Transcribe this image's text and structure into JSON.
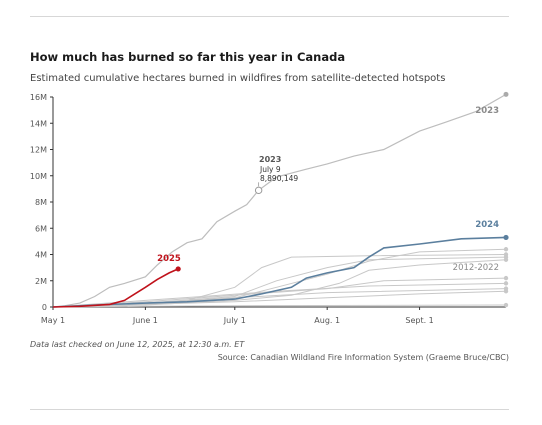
{
  "header": {
    "title": "How much has burned so far this year in Canada",
    "subtitle": "Estimated cumulative hectares burned in wildfires from satellite-detected hotspots"
  },
  "footer": {
    "note": "Data last checked on June 12, 2025, at 12:30 a.m. ET",
    "source": "Source: Canadian Wildland Fire Information System (Graeme Bruce/CBC)"
  },
  "colors": {
    "y2025": "#c0121b",
    "y2024": "#5b7f9e",
    "y2023": "#bdbdbd",
    "other": "#c8c8c8",
    "axis": "#333333"
  },
  "chart_data": {
    "type": "line",
    "xlabel": "",
    "ylabel": "",
    "x_is_date": true,
    "xlim": [
      "2025-05-01",
      "2025-09-30"
    ],
    "ylim": [
      0,
      16000000
    ],
    "y_ticks": [
      0,
      2000000,
      4000000,
      6000000,
      8000000,
      10000000,
      12000000,
      14000000,
      16000000
    ],
    "y_tick_labels": [
      "0",
      "2M",
      "4M",
      "6M",
      "8M",
      "10M",
      "12M",
      "14M",
      "16M"
    ],
    "x_ticks": [
      "2025-05-01",
      "2025-06-01",
      "2025-07-01",
      "2025-08-01",
      "2025-09-01"
    ],
    "x_tick_labels": [
      "May 1",
      "June 1",
      "July 1",
      "Aug. 1",
      "Sept. 1"
    ],
    "grid": false,
    "series": [
      {
        "name": "2012-2022",
        "group": "other",
        "lines": [
          {
            "end_label": "",
            "points": [
              [
                "2025-05-01",
                0
              ],
              [
                "2025-05-15",
                100000
              ],
              [
                "2025-06-01",
                250000
              ],
              [
                "2025-06-15",
                500000
              ],
              [
                "2025-07-01",
                1500000
              ],
              [
                "2025-07-10",
                3000000
              ],
              [
                "2025-07-20",
                3800000
              ],
              [
                "2025-08-15",
                3900000
              ],
              [
                "2025-09-30",
                4000000
              ]
            ]
          },
          {
            "end_label": "",
            "points": [
              [
                "2025-05-01",
                0
              ],
              [
                "2025-06-01",
                200000
              ],
              [
                "2025-07-01",
                700000
              ],
              [
                "2025-07-15",
                1500000
              ],
              [
                "2025-08-01",
                2500000
              ],
              [
                "2025-08-15",
                3500000
              ],
              [
                "2025-09-01",
                4200000
              ],
              [
                "2025-09-30",
                4400000
              ]
            ]
          },
          {
            "end_label": "",
            "points": [
              [
                "2025-05-01",
                0
              ],
              [
                "2025-06-01",
                300000
              ],
              [
                "2025-07-01",
                800000
              ],
              [
                "2025-07-15",
                2000000
              ],
              [
                "2025-08-01",
                3000000
              ],
              [
                "2025-08-15",
                3600000
              ],
              [
                "2025-09-30",
                3800000
              ]
            ]
          },
          {
            "end_label": "",
            "points": [
              [
                "2025-05-01",
                0
              ],
              [
                "2025-06-01",
                150000
              ],
              [
                "2025-07-01",
                500000
              ],
              [
                "2025-07-20",
                900000
              ],
              [
                "2025-08-05",
                1800000
              ],
              [
                "2025-08-15",
                2800000
              ],
              [
                "2025-09-01",
                3200000
              ],
              [
                "2025-09-30",
                3600000
              ]
            ]
          },
          {
            "end_label": "",
            "points": [
              [
                "2025-05-01",
                0
              ],
              [
                "2025-06-01",
                400000
              ],
              [
                "2025-07-01",
                900000
              ],
              [
                "2025-08-01",
                1400000
              ],
              [
                "2025-08-20",
                2000000
              ],
              [
                "2025-09-30",
                2200000
              ]
            ]
          },
          {
            "end_label": "",
            "points": [
              [
                "2025-05-01",
                0
              ],
              [
                "2025-06-01",
                500000
              ],
              [
                "2025-06-20",
                800000
              ],
              [
                "2025-07-15",
                1200000
              ],
              [
                "2025-08-15",
                1600000
              ],
              [
                "2025-09-30",
                1800000
              ]
            ]
          },
          {
            "end_label": "",
            "points": [
              [
                "2025-05-01",
                0
              ],
              [
                "2025-06-01",
                300000
              ],
              [
                "2025-07-01",
                700000
              ],
              [
                "2025-08-01",
                1100000
              ],
              [
                "2025-09-30",
                1400000
              ]
            ]
          },
          {
            "end_label": "",
            "points": [
              [
                "2025-05-01",
                0
              ],
              [
                "2025-06-01",
                200000
              ],
              [
                "2025-07-01",
                400000
              ],
              [
                "2025-08-01",
                700000
              ],
              [
                "2025-09-01",
                1000000
              ],
              [
                "2025-09-30",
                1200000
              ]
            ]
          },
          {
            "end_label": "",
            "points": [
              [
                "2025-05-01",
                0
              ],
              [
                "2025-06-01",
                50000
              ],
              [
                "2025-07-01",
                100000
              ],
              [
                "2025-09-30",
                150000
              ]
            ]
          }
        ]
      },
      {
        "name": "2023",
        "group": "y2023",
        "points": [
          [
            "2025-05-01",
            0
          ],
          [
            "2025-05-05",
            100000
          ],
          [
            "2025-05-10",
            300000
          ],
          [
            "2025-05-15",
            800000
          ],
          [
            "2025-05-20",
            1500000
          ],
          [
            "2025-05-25",
            1800000
          ],
          [
            "2025-06-01",
            2300000
          ],
          [
            "2025-06-05",
            3200000
          ],
          [
            "2025-06-10",
            4200000
          ],
          [
            "2025-06-15",
            4900000
          ],
          [
            "2025-06-20",
            5200000
          ],
          [
            "2025-06-25",
            6500000
          ],
          [
            "2025-07-01",
            7300000
          ],
          [
            "2025-07-05",
            7800000
          ],
          [
            "2025-07-09",
            8890149
          ],
          [
            "2025-07-15",
            9900000
          ],
          [
            "2025-07-25",
            10500000
          ],
          [
            "2025-08-01",
            10900000
          ],
          [
            "2025-08-10",
            11500000
          ],
          [
            "2025-08-20",
            12000000
          ],
          [
            "2025-09-01",
            13400000
          ],
          [
            "2025-09-10",
            14100000
          ],
          [
            "2025-09-20",
            14900000
          ],
          [
            "2025-09-30",
            16200000
          ]
        ]
      },
      {
        "name": "2024",
        "group": "y2024",
        "points": [
          [
            "2025-05-01",
            0
          ],
          [
            "2025-05-15",
            150000
          ],
          [
            "2025-06-01",
            300000
          ],
          [
            "2025-06-15",
            400000
          ],
          [
            "2025-07-01",
            600000
          ],
          [
            "2025-07-10",
            1000000
          ],
          [
            "2025-07-20",
            1500000
          ],
          [
            "2025-07-25",
            2200000
          ],
          [
            "2025-08-01",
            2600000
          ],
          [
            "2025-08-10",
            3000000
          ],
          [
            "2025-08-15",
            3800000
          ],
          [
            "2025-08-20",
            4500000
          ],
          [
            "2025-09-01",
            4800000
          ],
          [
            "2025-09-15",
            5200000
          ],
          [
            "2025-09-30",
            5300000
          ]
        ]
      },
      {
        "name": "2025",
        "group": "y2025",
        "points": [
          [
            "2025-05-01",
            0
          ],
          [
            "2025-05-10",
            50000
          ],
          [
            "2025-05-20",
            200000
          ],
          [
            "2025-05-25",
            500000
          ],
          [
            "2025-06-01",
            1500000
          ],
          [
            "2025-06-05",
            2100000
          ],
          [
            "2025-06-09",
            2600000
          ],
          [
            "2025-06-12",
            2900000
          ]
        ]
      }
    ],
    "annotations": [
      {
        "series": "2023",
        "date_text": "July 9",
        "value_text": "8,890,149",
        "x": "2025-07-09",
        "y": 8890149
      }
    ]
  }
}
